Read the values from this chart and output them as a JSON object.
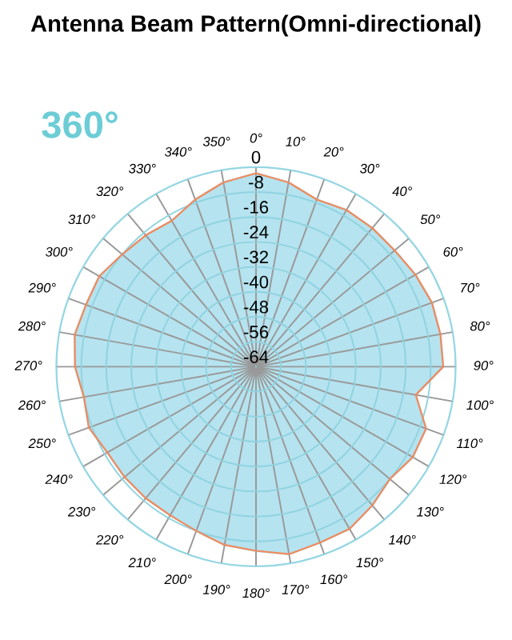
{
  "chart_data": {
    "type": "radar",
    "title": "Antenna Beam Pattern(Omni-directional)",
    "annotations": [
      "360°"
    ],
    "categories": [
      "0°",
      "10°",
      "20°",
      "30°",
      "40°",
      "50°",
      "60°",
      "70°",
      "80°",
      "90°",
      "100°",
      "110°",
      "120°",
      "130°",
      "140°",
      "150°",
      "160°",
      "170°",
      "180°",
      "190°",
      "200°",
      "210°",
      "220°",
      "230°",
      "240°",
      "250°",
      "260°",
      "270°",
      "280°",
      "290°",
      "300°",
      "310°",
      "320°",
      "330°",
      "340°",
      "350°"
    ],
    "series": [
      {
        "color": "#b5e3ef",
        "values": [
          -2,
          -4,
          -7,
          -6,
          -6,
          -6,
          -5,
          -4,
          -4,
          -4,
          -12,
          -6,
          -6,
          -8,
          -6,
          -4,
          -4,
          -3,
          -5,
          -6,
          -8,
          -9,
          -9,
          -9,
          -9,
          -7,
          -8,
          -6,
          -5,
          -6,
          -6,
          -8,
          -9,
          -10,
          -7,
          -4
        ]
      }
    ],
    "ylim": [
      -64,
      0
    ],
    "yticks": [
      0,
      -8,
      -16,
      -24,
      -32,
      -40,
      -48,
      -56,
      -64
    ],
    "grid": true,
    "marker": "none",
    "line_style": "solid"
  }
}
